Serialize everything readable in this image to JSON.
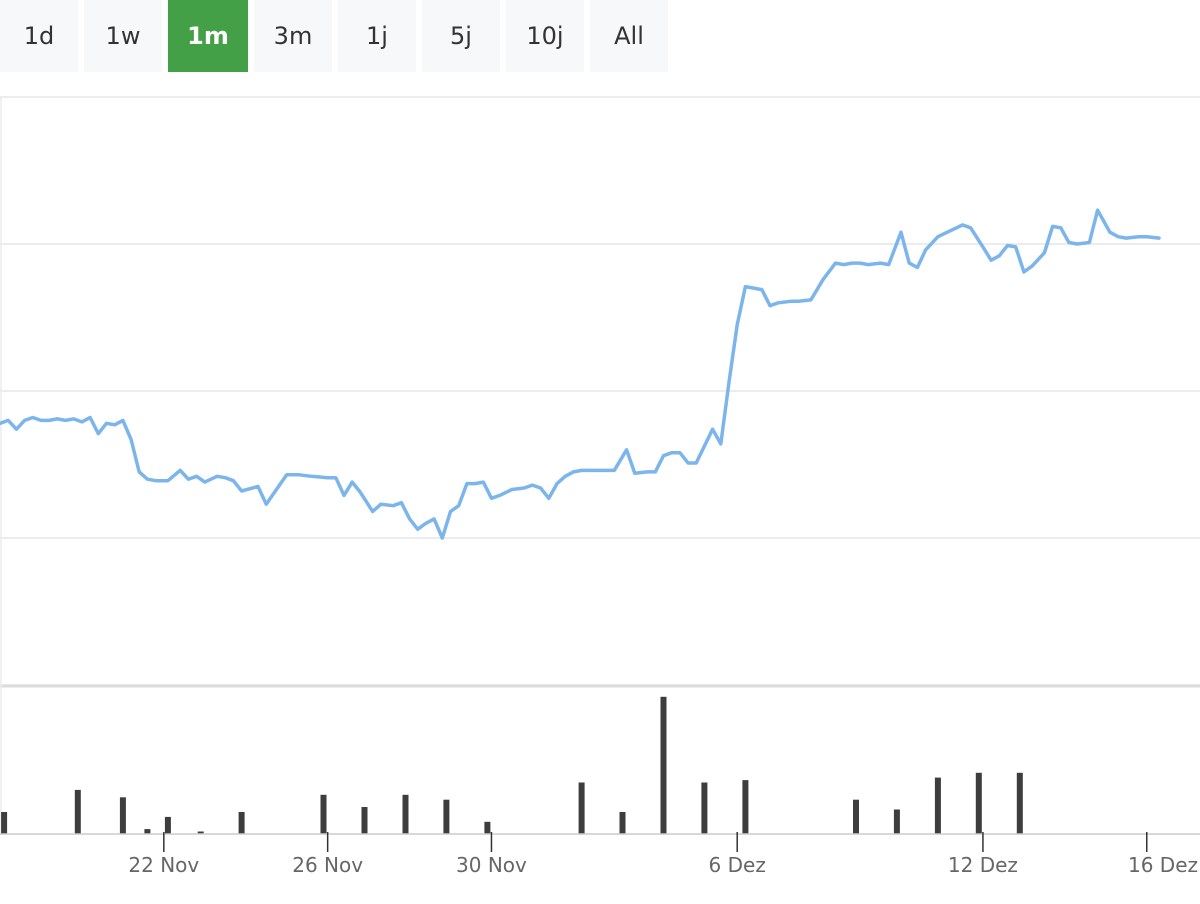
{
  "range_selector": {
    "buttons": [
      {
        "label": "1d",
        "active": false
      },
      {
        "label": "1w",
        "active": false
      },
      {
        "label": "1m",
        "active": true
      },
      {
        "label": "3m",
        "active": false
      },
      {
        "label": "1j",
        "active": false
      },
      {
        "label": "5j",
        "active": false
      },
      {
        "label": "10j",
        "active": false
      },
      {
        "label": "All",
        "active": false
      }
    ]
  },
  "colors": {
    "line": "#7cb5ec",
    "volume": "#3d3d3d",
    "active_button": "#43a047",
    "grid": "#e6e6e6"
  },
  "chart_data": [
    {
      "type": "line",
      "title": "",
      "xlabel": "",
      "ylabel": "",
      "y_axis_labels_shown": false,
      "ylim": [
        0,
        4
      ],
      "grid": true,
      "x_range_days": [
        18.0,
        47.3
      ],
      "x_ticks": [
        {
          "day": 22,
          "label": "22 Nov"
        },
        {
          "day": 26,
          "label": "26 Nov"
        },
        {
          "day": 30,
          "label": "30 Nov"
        },
        {
          "day": 36,
          "label": "6 Dez"
        },
        {
          "day": 42,
          "label": "12 Dez"
        },
        {
          "day": 46,
          "label": "16 Dez"
        }
      ],
      "series": [
        {
          "points": [
            [
              18.0,
              1.78
            ],
            [
              18.2,
              1.8
            ],
            [
              18.4,
              1.74
            ],
            [
              18.6,
              1.8
            ],
            [
              18.8,
              1.82
            ],
            [
              19.0,
              1.8
            ],
            [
              19.2,
              1.8
            ],
            [
              19.4,
              1.81
            ],
            [
              19.6,
              1.8
            ],
            [
              19.8,
              1.81
            ],
            [
              20.0,
              1.79
            ],
            [
              20.2,
              1.82
            ],
            [
              20.4,
              1.71
            ],
            [
              20.6,
              1.78
            ],
            [
              20.8,
              1.77
            ],
            [
              21.0,
              1.8
            ],
            [
              21.2,
              1.67
            ],
            [
              21.4,
              1.45
            ],
            [
              21.6,
              1.4
            ],
            [
              21.8,
              1.39
            ],
            [
              22.1,
              1.39
            ],
            [
              22.4,
              1.46
            ],
            [
              22.6,
              1.4
            ],
            [
              22.8,
              1.42
            ],
            [
              23.0,
              1.38
            ],
            [
              23.3,
              1.42
            ],
            [
              23.5,
              1.41
            ],
            [
              23.7,
              1.39
            ],
            [
              23.9,
              1.32
            ],
            [
              24.3,
              1.35
            ],
            [
              24.5,
              1.23
            ],
            [
              25.0,
              1.43
            ],
            [
              25.3,
              1.43
            ],
            [
              25.6,
              1.42
            ],
            [
              26.0,
              1.41
            ],
            [
              26.2,
              1.41
            ],
            [
              26.4,
              1.29
            ],
            [
              26.6,
              1.38
            ],
            [
              26.8,
              1.31
            ],
            [
              27.1,
              1.18
            ],
            [
              27.3,
              1.23
            ],
            [
              27.6,
              1.22
            ],
            [
              27.8,
              1.24
            ],
            [
              28.0,
              1.13
            ],
            [
              28.2,
              1.06
            ],
            [
              28.4,
              1.1
            ],
            [
              28.6,
              1.13
            ],
            [
              28.8,
              1.0
            ],
            [
              29.0,
              1.18
            ],
            [
              29.2,
              1.22
            ],
            [
              29.4,
              1.37
            ],
            [
              29.6,
              1.37
            ],
            [
              29.8,
              1.38
            ],
            [
              30.0,
              1.27
            ],
            [
              30.2,
              1.29
            ],
            [
              30.5,
              1.33
            ],
            [
              30.8,
              1.34
            ],
            [
              31.0,
              1.36
            ],
            [
              31.2,
              1.34
            ],
            [
              31.4,
              1.27
            ],
            [
              31.6,
              1.37
            ],
            [
              31.8,
              1.42
            ],
            [
              32.0,
              1.45
            ],
            [
              32.2,
              1.46
            ],
            [
              32.5,
              1.46
            ],
            [
              32.8,
              1.46
            ],
            [
              33.0,
              1.46
            ],
            [
              33.3,
              1.6
            ],
            [
              33.5,
              1.44
            ],
            [
              33.8,
              1.45
            ],
            [
              34.0,
              1.45
            ],
            [
              34.2,
              1.56
            ],
            [
              34.4,
              1.58
            ],
            [
              34.6,
              1.58
            ],
            [
              34.8,
              1.51
            ],
            [
              35.0,
              1.51
            ],
            [
              35.4,
              1.74
            ],
            [
              35.6,
              1.64
            ],
            [
              35.8,
              2.06
            ],
            [
              36.0,
              2.45
            ],
            [
              36.2,
              2.71
            ],
            [
              36.6,
              2.69
            ],
            [
              36.8,
              2.58
            ],
            [
              37.0,
              2.6
            ],
            [
              37.3,
              2.61
            ],
            [
              37.5,
              2.61
            ],
            [
              37.8,
              2.62
            ],
            [
              38.1,
              2.76
            ],
            [
              38.4,
              2.87
            ],
            [
              38.6,
              2.86
            ],
            [
              38.8,
              2.87
            ],
            [
              39.0,
              2.87
            ],
            [
              39.2,
              2.86
            ],
            [
              39.5,
              2.87
            ],
            [
              39.7,
              2.86
            ],
            [
              40.0,
              3.08
            ],
            [
              40.2,
              2.87
            ],
            [
              40.4,
              2.84
            ],
            [
              40.6,
              2.96
            ],
            [
              40.9,
              3.05
            ],
            [
              41.2,
              3.09
            ],
            [
              41.5,
              3.13
            ],
            [
              41.7,
              3.11
            ],
            [
              42.0,
              2.98
            ],
            [
              42.2,
              2.89
            ],
            [
              42.4,
              2.92
            ],
            [
              42.6,
              2.99
            ],
            [
              42.8,
              2.98
            ],
            [
              43.0,
              2.81
            ],
            [
              43.2,
              2.85
            ],
            [
              43.5,
              2.94
            ],
            [
              43.7,
              3.12
            ],
            [
              43.9,
              3.11
            ],
            [
              44.1,
              3.01
            ],
            [
              44.3,
              3.0
            ],
            [
              44.6,
              3.01
            ],
            [
              44.8,
              3.23
            ],
            [
              45.1,
              3.08
            ],
            [
              45.3,
              3.05
            ],
            [
              45.5,
              3.04
            ],
            [
              45.8,
              3.05
            ],
            [
              46.0,
              3.05
            ],
            [
              46.3,
              3.04
            ]
          ]
        }
      ]
    },
    {
      "type": "bar",
      "title": "",
      "xlabel": "",
      "ylabel": "",
      "ylim": [
        0,
        120
      ],
      "grid": false,
      "x_range_days": [
        18.0,
        47.3
      ],
      "bars": [
        [
          18.1,
          18
        ],
        [
          19.9,
          36
        ],
        [
          21.0,
          30
        ],
        [
          21.6,
          4
        ],
        [
          22.1,
          14
        ],
        [
          22.9,
          2
        ],
        [
          23.9,
          18
        ],
        [
          25.9,
          32
        ],
        [
          26.9,
          22
        ],
        [
          27.9,
          32
        ],
        [
          28.9,
          28
        ],
        [
          29.9,
          10
        ],
        [
          32.2,
          42
        ],
        [
          33.2,
          18
        ],
        [
          34.2,
          112
        ],
        [
          35.2,
          42
        ],
        [
          36.2,
          44
        ],
        [
          38.9,
          28
        ],
        [
          39.9,
          20
        ],
        [
          40.9,
          46
        ],
        [
          41.9,
          50
        ],
        [
          42.9,
          50
        ]
      ]
    }
  ]
}
